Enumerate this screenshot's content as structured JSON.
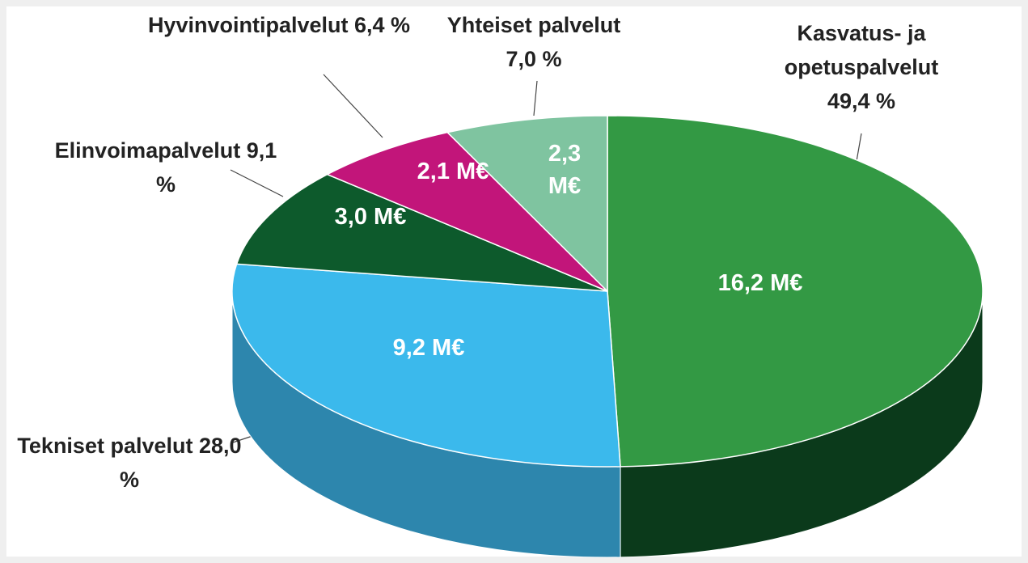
{
  "chart_data": {
    "type": "pie3d",
    "categories": [
      "Kasvatus- ja opetuspalvelut",
      "Tekniset palvelut",
      "Elinvoimapalvelut",
      "Hyvinvointipalvelut",
      "Yhteiset palvelut"
    ],
    "values": [
      49.4,
      28.0,
      9.1,
      6.4,
      7.0
    ],
    "value_labels": [
      "49,4 %",
      "28,0 %",
      "9,1 %",
      "6,4 %",
      "7,0 %"
    ],
    "amounts": [
      16.2,
      9.2,
      3.0,
      2.1,
      2.3
    ],
    "amount_labels": [
      "16,2 M€",
      "9,2 M€",
      "3,0 M€",
      "2,1 M€",
      "2,3 M€"
    ],
    "colors": [
      "#339944",
      "#3bb9ec",
      "#0d5a2c",
      "#c2157a",
      "#7fc4a0"
    ],
    "side_colors": [
      "#0b3a1b",
      "#2d86ad",
      "#073a1c",
      "#7a0d4d",
      "#4f8f6e"
    ]
  }
}
